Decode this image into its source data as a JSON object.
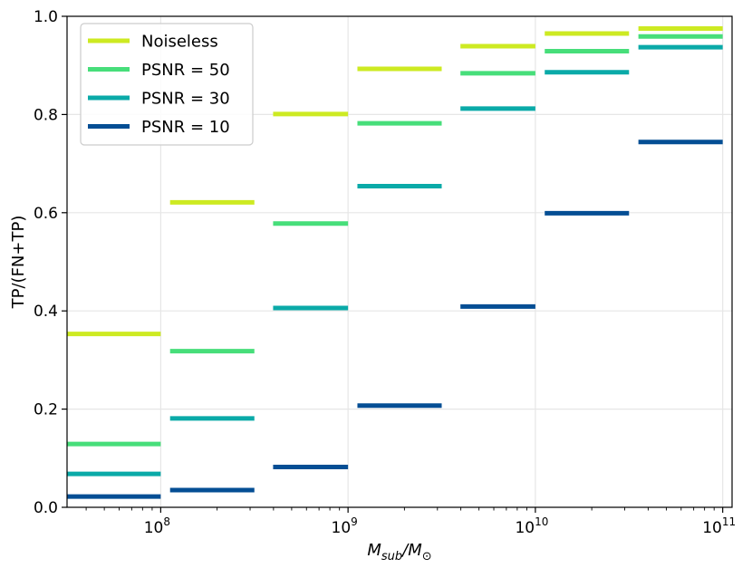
{
  "chart_data": {
    "type": "step",
    "xlabel_main": "M",
    "xlabel_sub": "sub",
    "xlabel_sep": "/M",
    "xlabel_sub2": "⊙",
    "ylabel": "TP/(FN+TP)",
    "x_scale": "log",
    "xlim": [
      31622776,
      112201845430
    ],
    "ylim": [
      0,
      1.0
    ],
    "grid": true,
    "legend_position": "upper-left",
    "y_ticks": [
      {
        "value": 0.0,
        "label": "0.0"
      },
      {
        "value": 0.2,
        "label": "0.2"
      },
      {
        "value": 0.4,
        "label": "0.4"
      },
      {
        "value": 0.6,
        "label": "0.6"
      },
      {
        "value": 0.8,
        "label": "0.8"
      },
      {
        "value": 1.0,
        "label": "1.0"
      }
    ],
    "x_ticks": [
      {
        "value": 100000000,
        "base": "10",
        "exp": "8"
      },
      {
        "value": 1000000000,
        "base": "10",
        "exp": "9"
      },
      {
        "value": 10000000000,
        "base": "10",
        "exp": "10"
      },
      {
        "value": 100000000000,
        "base": "10",
        "exp": "11"
      }
    ],
    "bins": [
      [
        31622776,
        100000000
      ],
      [
        112201845,
        316227766
      ],
      [
        398107171,
        1000000000
      ],
      [
        1122018454,
        3162277660
      ],
      [
        3981071706,
        10000000000
      ],
      [
        11220184543,
        31622776602
      ],
      [
        35481338923,
        100000000000
      ]
    ],
    "series": [
      {
        "name": "Noiseless",
        "color": "#cdea22",
        "values": [
          0.353,
          0.621,
          0.801,
          0.893,
          0.939,
          0.965,
          0.975
        ]
      },
      {
        "name": "PSNR = 50",
        "color": "#47de7a",
        "values": [
          0.129,
          0.318,
          0.578,
          0.782,
          0.884,
          0.929,
          0.959
        ]
      },
      {
        "name": "PSNR = 30",
        "color": "#0aaaa8",
        "values": [
          0.068,
          0.181,
          0.406,
          0.654,
          0.812,
          0.886,
          0.937
        ]
      },
      {
        "name": "PSNR = 10",
        "color": "#044e94",
        "values": [
          0.022,
          0.035,
          0.082,
          0.207,
          0.409,
          0.599,
          0.744
        ]
      }
    ]
  }
}
